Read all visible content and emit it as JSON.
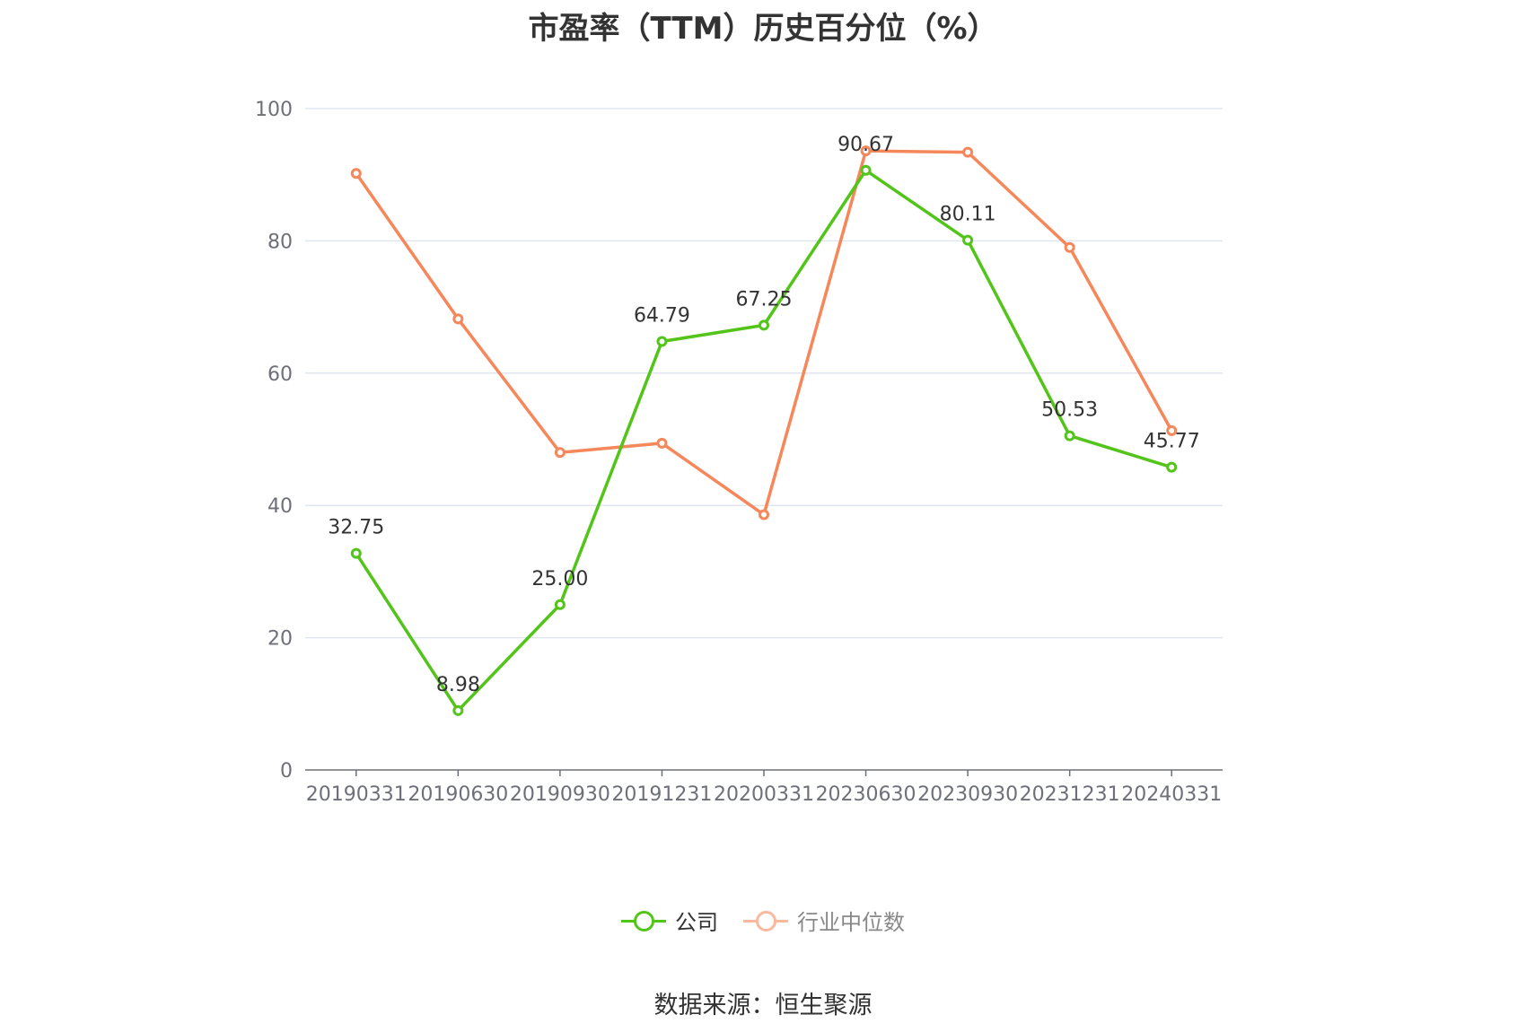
{
  "chart_data": {
    "type": "line",
    "title": "市盈率（TTM）历史百分位（%）",
    "categories": [
      "20190331",
      "20190630",
      "20190930",
      "20191231",
      "20200331",
      "20230630",
      "20230930",
      "20231231",
      "20240331"
    ],
    "ylim": [
      0,
      100
    ],
    "yticks": [
      0,
      20,
      40,
      60,
      80,
      100
    ],
    "grid": true,
    "legend_position": "bottom",
    "series": [
      {
        "name": "公司",
        "color": "#52c41a",
        "values": [
          32.75,
          8.98,
          25.0,
          64.79,
          67.25,
          90.67,
          80.11,
          50.53,
          45.77
        ],
        "labels": [
          "32.75",
          "8.98",
          "25.00",
          "64.79",
          "67.25",
          "90.67",
          "80.11",
          "50.53",
          "45.77"
        ]
      },
      {
        "name": "行业中位数",
        "color": "#f5875a",
        "values": [
          90.2,
          68.2,
          48.0,
          49.4,
          38.6,
          93.6,
          93.4,
          79.0,
          51.3
        ]
      }
    ]
  },
  "legend": {
    "company": "公司",
    "industry": "行业中位数"
  },
  "source": "数据来源：恒生聚源"
}
